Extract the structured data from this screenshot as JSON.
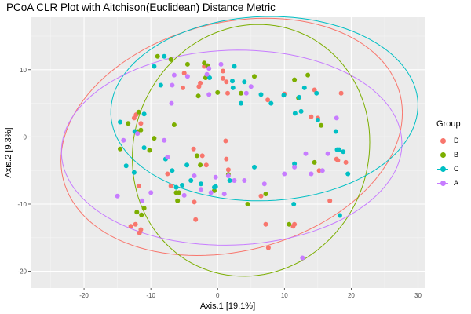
{
  "chart_data": {
    "type": "scatter",
    "title": "PCoA CLR Plot with Aitchison(Euclidean) Distance Metric",
    "xlabel": "Axis.1   [19.1%]",
    "ylabel": "Axis.2   [9.3%]",
    "xlim": [
      -28,
      31
    ],
    "ylim": [
      -22.5,
      17.8
    ],
    "xticks": [
      -20,
      -10,
      0,
      10,
      20,
      30
    ],
    "yticks": [
      -20,
      -10,
      0,
      10
    ],
    "grid": true,
    "legend": {
      "title": "Group",
      "position": "right"
    },
    "series": [
      {
        "name": "D",
        "color": "#F8766D",
        "ellipse": {
          "center": [
            2.1,
            0
          ],
          "radii": [
            26,
            17
          ],
          "angle": 14
        },
        "points": [
          [
            -13,
            -13.3
          ],
          [
            -12.3,
            -13
          ],
          [
            -11.5,
            -13.8
          ],
          [
            -11.7,
            -14.3
          ],
          [
            -12.5,
            2.8
          ],
          [
            -12.2,
            3.3
          ],
          [
            -11.5,
            2
          ],
          [
            -11.8,
            -7.3
          ],
          [
            -7.5,
            -5.5
          ],
          [
            -7,
            -7.3
          ],
          [
            -5,
            9.5
          ],
          [
            -5.2,
            7.3
          ],
          [
            -2.8,
            7.5
          ],
          [
            -2.6,
            8
          ],
          [
            -1.6,
            9
          ],
          [
            -2,
            10.5
          ],
          [
            -3.5,
            -9.7
          ],
          [
            -3.3,
            -12.3
          ],
          [
            -3.6,
            -1.8
          ],
          [
            -2.3,
            -2.8
          ],
          [
            -1.7,
            -4.2
          ],
          [
            1.2,
            -0.6
          ],
          [
            1.3,
            -3.3
          ],
          [
            1.6,
            -4.9
          ],
          [
            0.8,
            8.7
          ],
          [
            1.5,
            6.5
          ],
          [
            1.3,
            8.2
          ],
          [
            0.8,
            9.8
          ],
          [
            7.5,
            5.5
          ],
          [
            6.5,
            -8.8
          ],
          [
            7.2,
            -13
          ],
          [
            7.6,
            -16.5
          ],
          [
            11.5,
            -13
          ],
          [
            11.3,
            -13.3
          ],
          [
            14,
            3
          ],
          [
            14.5,
            7
          ],
          [
            15,
            2.8
          ],
          [
            15.2,
            -5
          ],
          [
            16.8,
            -9.5
          ],
          [
            17.8,
            -3.3
          ],
          [
            18,
            -3.5
          ],
          [
            19.2,
            -3.8
          ],
          [
            18.5,
            6.5
          ],
          [
            10,
            6.4
          ]
        ]
      },
      {
        "name": "B",
        "color": "#7CAE00",
        "ellipse": {
          "center": [
            5,
            -2
          ],
          "radii": [
            19,
            17.5
          ],
          "angle": 65
        },
        "points": [
          [
            -14.6,
            -1.8
          ],
          [
            -13.4,
            2
          ],
          [
            -11.8,
            3.7
          ],
          [
            -11.5,
            1
          ],
          [
            -12,
            0.8
          ],
          [
            -10.2,
            -2
          ],
          [
            -9.5,
            -0.2
          ],
          [
            -12.1,
            -11.2
          ],
          [
            -11.4,
            -11.6
          ],
          [
            -11,
            -10.6
          ],
          [
            -9,
            12
          ],
          [
            -7,
            11.5
          ],
          [
            -6.5,
            1.8
          ],
          [
            -6.2,
            -8.3
          ],
          [
            -6,
            -9.5
          ],
          [
            -5.8,
            -8.3
          ],
          [
            -4.5,
            10.8
          ],
          [
            -3.1,
            -2.8
          ],
          [
            -2.9,
            6.1
          ],
          [
            -2.6,
            -4.2
          ],
          [
            -2,
            11
          ],
          [
            -1.8,
            8.8
          ],
          [
            -1.5,
            10.6
          ],
          [
            -0.5,
            -8
          ],
          [
            0,
            6.6
          ],
          [
            1.6,
            -5.6
          ],
          [
            3.5,
            6.5
          ],
          [
            4.5,
            -10
          ],
          [
            5.5,
            9
          ],
          [
            7.2,
            -8.5
          ],
          [
            10.7,
            -13
          ],
          [
            11.5,
            8.5
          ],
          [
            12.1,
            5.8
          ],
          [
            13.5,
            9.2
          ],
          [
            14.5,
            -3.8
          ],
          [
            15.5,
            1.7
          ]
        ]
      },
      {
        "name": "C",
        "color": "#00BFC4",
        "ellipse": {
          "center": [
            7,
            4.2
          ],
          "radii": [
            23,
            13.7
          ],
          "angle": 2
        },
        "points": [
          [
            -14.6,
            2.2
          ],
          [
            -13.7,
            -4.3
          ],
          [
            -12.4,
            0.8
          ],
          [
            -12.5,
            -5.3
          ],
          [
            -11,
            3.4
          ],
          [
            -11,
            -1.6
          ],
          [
            -9.5,
            10.5
          ],
          [
            -8,
            12
          ],
          [
            -8.5,
            7.7
          ],
          [
            -7.8,
            -3.3
          ],
          [
            -6.8,
            -5
          ],
          [
            -6.2,
            -7.5
          ],
          [
            -5.3,
            -7.2
          ],
          [
            -4.6,
            -4.2
          ],
          [
            -4,
            -6.5
          ],
          [
            -2.5,
            -7
          ],
          [
            -1.2,
            8.8
          ],
          [
            -0.5,
            -7.5
          ],
          [
            -0.3,
            -7.4
          ],
          [
            1.8,
            -6.5
          ],
          [
            2.2,
            8.3
          ],
          [
            2.5,
            10.5
          ],
          [
            2.3,
            7.3
          ],
          [
            3.5,
            5
          ],
          [
            4,
            8.2
          ],
          [
            5.5,
            -4.5
          ],
          [
            6.5,
            6.3
          ],
          [
            8,
            5
          ],
          [
            9.9,
            6.2
          ],
          [
            11.5,
            -4
          ],
          [
            11.4,
            -10
          ],
          [
            11.6,
            3.5
          ],
          [
            12.2,
            5.9
          ],
          [
            12.5,
            3.8
          ],
          [
            13,
            7.3
          ],
          [
            14.8,
            6.5
          ],
          [
            15,
            2.5
          ],
          [
            17.7,
            0.8
          ],
          [
            17.9,
            -1.9
          ],
          [
            18.2,
            -1.9
          ],
          [
            18.8,
            -2.2
          ],
          [
            18.3,
            -11.7
          ],
          [
            19.5,
            -5.5
          ]
        ]
      },
      {
        "name": "A",
        "color": "#C77CFF",
        "ellipse": {
          "center": [
            2.1,
            -1.6
          ],
          "radii": [
            25.5,
            14.5
          ],
          "angle": 2
        },
        "points": [
          [
            -15,
            -8.8
          ],
          [
            -14.1,
            -0.5
          ],
          [
            -12,
            0.5
          ],
          [
            -11.3,
            -9.5
          ],
          [
            -10,
            -8.3
          ],
          [
            -8,
            -0.5
          ],
          [
            -7.5,
            -3
          ],
          [
            -6.9,
            5
          ],
          [
            -6.8,
            7.7
          ],
          [
            -6.5,
            9.2
          ],
          [
            -5,
            -8.7
          ],
          [
            -4.5,
            9
          ],
          [
            -3.5,
            -5.8
          ],
          [
            -2.5,
            -7.8
          ],
          [
            -1.6,
            9.3
          ],
          [
            -1.3,
            10.2
          ],
          [
            -1.3,
            6.3
          ],
          [
            -1,
            -8.3
          ],
          [
            -0.3,
            -6
          ],
          [
            0.5,
            10.8
          ],
          [
            1,
            -8.5
          ],
          [
            1.6,
            -5.8
          ],
          [
            2.5,
            -6.5
          ],
          [
            4,
            -6.5
          ],
          [
            4.3,
            6.5
          ],
          [
            5,
            7.5
          ],
          [
            7,
            -7
          ],
          [
            10,
            -5.5
          ],
          [
            11.5,
            -4.5
          ],
          [
            12.7,
            -18
          ],
          [
            13.2,
            -2.5
          ],
          [
            14,
            -5.5
          ],
          [
            15.7,
            -5
          ],
          [
            16.5,
            -2.5
          ],
          [
            17.8,
            2.8
          ]
        ]
      }
    ]
  }
}
